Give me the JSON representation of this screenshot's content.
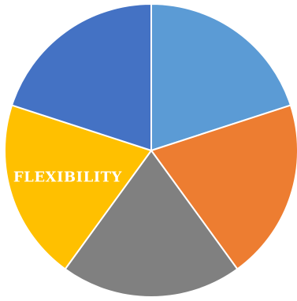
{
  "chart_data": {
    "type": "pie",
    "title": "",
    "slices": [
      {
        "label": "",
        "value": 20,
        "color": "#5B9BD5"
      },
      {
        "label": "",
        "value": 20,
        "color": "#ED7D31"
      },
      {
        "label": "",
        "value": 20,
        "color": "#808080"
      },
      {
        "label": "FLEXIBILITY",
        "value": 20,
        "color": "#FFC000"
      },
      {
        "label": "",
        "value": 20,
        "color": "#4472C4"
      }
    ],
    "start_angle_deg": 0,
    "direction": "clockwise",
    "legend": "none"
  }
}
